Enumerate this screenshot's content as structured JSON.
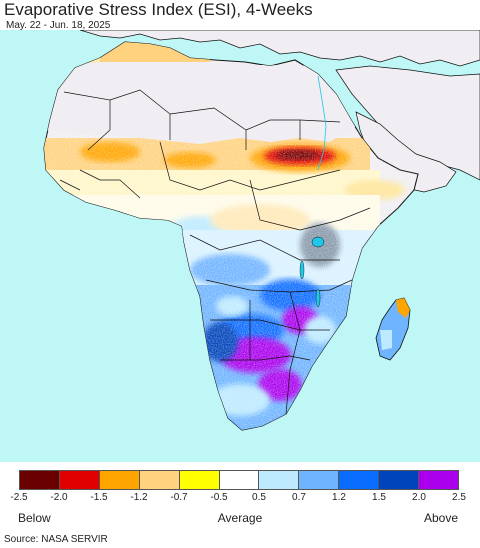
{
  "header": {
    "title": "Evaporative Stress Index (ESI), 4-Weeks",
    "date_range": "May. 22 - Jun. 18, 2025"
  },
  "map": {
    "ocean_color": "#bff7f7",
    "no_data_color": "#f0eef2",
    "border_color": "#111111"
  },
  "legend": {
    "colors": [
      "#6b0000",
      "#e00000",
      "#ffa500",
      "#ffd27f",
      "#ffff00",
      "#ffffff",
      "#bdeaff",
      "#6fb4ff",
      "#0a6cff",
      "#0044bb",
      "#aa00ee"
    ],
    "ticks": [
      "-2.5",
      "-2.0",
      "-1.5",
      "-1.2",
      "-0.7",
      "-0.5",
      "0.5",
      "0.7",
      "1.2",
      "1.5",
      "2.0",
      "2.5"
    ],
    "label_below": "Below",
    "label_average": "Average",
    "label_above": "Above"
  },
  "footer": {
    "source": "Source: NASA SERVIR"
  }
}
